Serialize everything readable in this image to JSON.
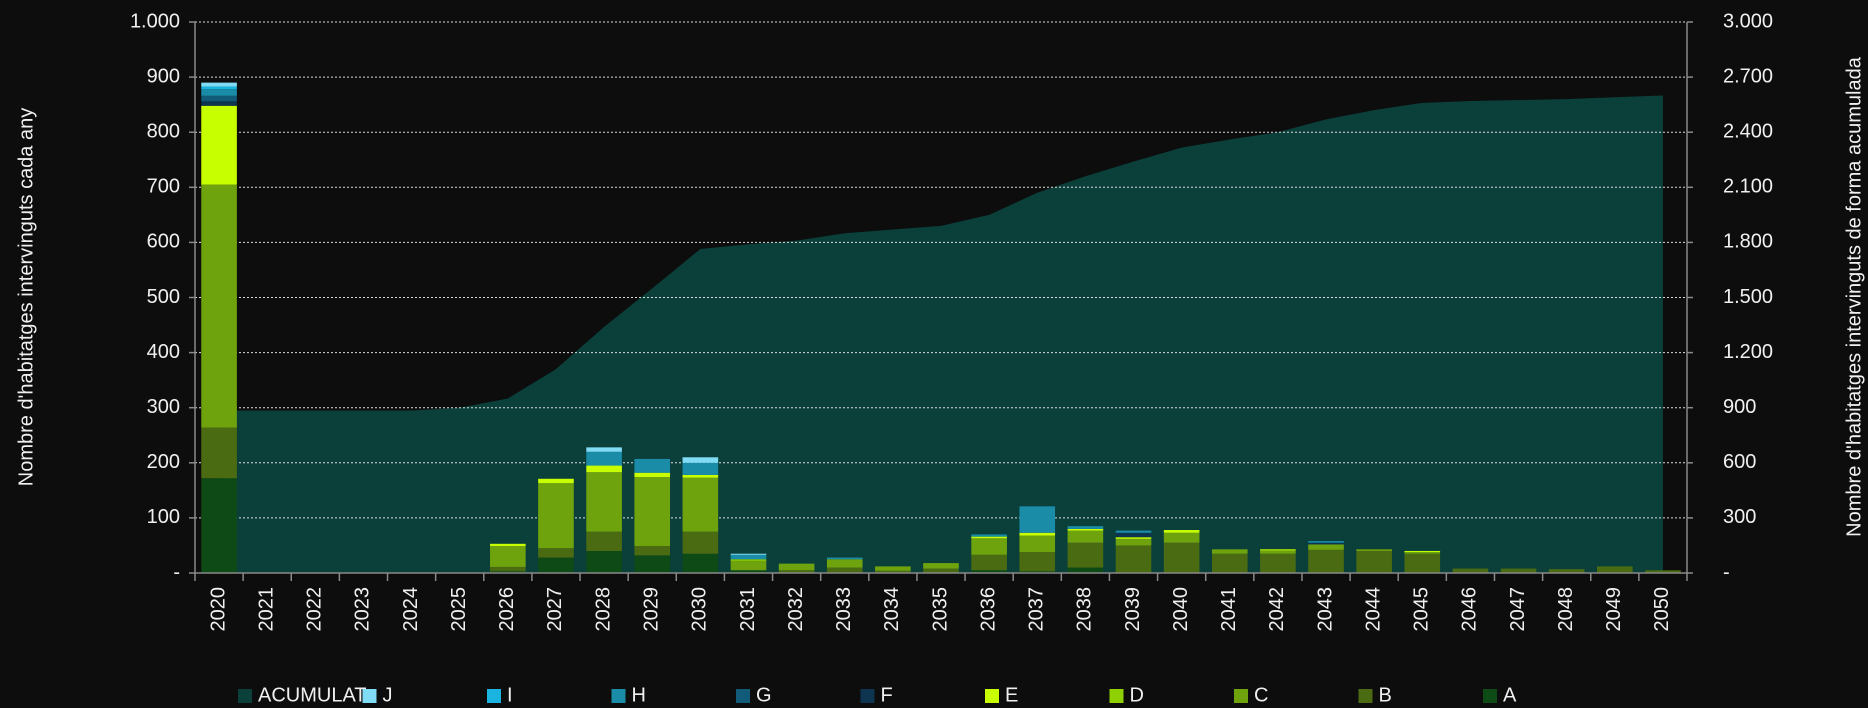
{
  "chart_data": {
    "type": "bar",
    "ylabel": "Nombre d'habitatges intervinguts cada any",
    "y2label": "Nombre d'habitatges intervinguts de forma acumulada",
    "categories": [
      "2020",
      "2021",
      "2022",
      "2023",
      "2024",
      "2025",
      "2026",
      "2027",
      "2028",
      "2029",
      "2030",
      "2031",
      "2032",
      "2033",
      "2034",
      "2035",
      "2036",
      "2037",
      "2038",
      "2039",
      "2040",
      "2041",
      "2042",
      "2043",
      "2044",
      "2045",
      "2046",
      "2047",
      "2048",
      "2049",
      "2050"
    ],
    "ylim": [
      0,
      1000
    ],
    "yticks": [
      {
        "value": 0,
        "label": "-"
      },
      100,
      200,
      300,
      400,
      500,
      600,
      700,
      800,
      900,
      {
        "value": 1000,
        "label": "1.000"
      }
    ],
    "y2lim": [
      0,
      3000
    ],
    "y2ticks": [
      {
        "value": 0,
        "label": "-"
      },
      300,
      600,
      900,
      {
        "value": 1200,
        "label": "1.200"
      },
      {
        "value": 1500,
        "label": "1.500"
      },
      {
        "value": 1800,
        "label": "1.800"
      },
      {
        "value": 2100,
        "label": "2.100"
      },
      {
        "value": 2400,
        "label": "2.400"
      },
      {
        "value": 2700,
        "label": "2.700"
      },
      {
        "value": 3000,
        "label": "3.000"
      }
    ],
    "grid": true,
    "stacked": true,
    "legend": "bottom",
    "series": [
      {
        "name": "A",
        "color": "#0e4a16",
        "values": [
          172,
          0,
          0,
          0,
          0,
          0,
          3,
          28,
          40,
          32,
          35,
          5,
          0,
          0,
          0,
          0,
          5,
          3,
          10,
          0,
          0,
          0,
          0,
          0,
          0,
          0,
          0,
          0,
          0,
          0,
          0
        ]
      },
      {
        "name": "B",
        "color": "#4b6b12",
        "values": [
          92,
          0,
          0,
          0,
          0,
          0,
          8,
          17,
          35,
          17,
          40,
          0,
          5,
          10,
          4,
          8,
          28,
          35,
          45,
          50,
          55,
          35,
          35,
          42,
          40,
          35,
          8,
          8,
          7,
          12,
          5
        ]
      },
      {
        "name": "C",
        "color": "#6fa30e",
        "values": [
          441,
          0,
          0,
          0,
          0,
          0,
          38,
          118,
          108,
          125,
          98,
          17,
          12,
          15,
          8,
          10,
          30,
          30,
          22,
          12,
          18,
          8,
          6,
          10,
          3,
          3,
          0,
          0,
          0,
          0,
          0
        ]
      },
      {
        "name": "D",
        "color": "#8fd000",
        "values": [
          0,
          0,
          0,
          0,
          0,
          0,
          0,
          0,
          0,
          0,
          0,
          3,
          0,
          0,
          0,
          0,
          0,
          0,
          0,
          0,
          0,
          0,
          0,
          0,
          0,
          0,
          0,
          0,
          0,
          0,
          0
        ]
      },
      {
        "name": "E",
        "color": "#c8ff00",
        "values": [
          143,
          0,
          0,
          0,
          0,
          0,
          4,
          8,
          12,
          8,
          5,
          0,
          0,
          0,
          0,
          0,
          3,
          5,
          3,
          3,
          5,
          0,
          2,
          0,
          0,
          2,
          0,
          0,
          0,
          0,
          0
        ]
      },
      {
        "name": "F",
        "color": "#0d3550",
        "values": [
          8,
          0,
          0,
          0,
          0,
          0,
          0,
          0,
          0,
          0,
          0,
          0,
          0,
          0,
          0,
          0,
          0,
          0,
          0,
          8,
          0,
          0,
          0,
          3,
          0,
          0,
          0,
          0,
          0,
          0,
          0
        ]
      },
      {
        "name": "G",
        "color": "#115a78",
        "values": [
          10,
          0,
          0,
          0,
          0,
          0,
          0,
          0,
          0,
          0,
          0,
          0,
          0,
          0,
          0,
          0,
          0,
          0,
          0,
          0,
          0,
          0,
          0,
          0,
          0,
          0,
          0,
          0,
          0,
          0,
          0
        ]
      },
      {
        "name": "H",
        "color": "#1a8ca8",
        "values": [
          12,
          0,
          0,
          0,
          0,
          0,
          0,
          0,
          25,
          25,
          22,
          8,
          0,
          3,
          0,
          0,
          4,
          48,
          5,
          4,
          0,
          0,
          0,
          3,
          0,
          0,
          0,
          0,
          0,
          0,
          0
        ]
      },
      {
        "name": "I",
        "color": "#1bb3e0",
        "values": [
          5,
          0,
          0,
          0,
          0,
          0,
          0,
          0,
          0,
          0,
          0,
          0,
          0,
          0,
          0,
          0,
          0,
          0,
          0,
          0,
          0,
          0,
          0,
          0,
          0,
          0,
          0,
          0,
          0,
          0,
          0
        ]
      },
      {
        "name": "J",
        "color": "#80dcf5",
        "values": [
          7,
          0,
          0,
          0,
          0,
          0,
          0,
          0,
          8,
          0,
          10,
          2,
          0,
          0,
          0,
          0,
          0,
          0,
          0,
          0,
          0,
          0,
          0,
          0,
          0,
          0,
          0,
          0,
          0,
          0,
          0
        ]
      },
      {
        "name": "ACUMULAT",
        "type": "area",
        "axis": "y2",
        "color": "#0a3f3a",
        "values": [
          885,
          885,
          885,
          885,
          885,
          900,
          950,
          1110,
          1340,
          1550,
          1764,
          1790,
          1810,
          1850,
          1870,
          1890,
          1950,
          2070,
          2160,
          2240,
          2316,
          2360,
          2400,
          2470,
          2520,
          2560,
          2570,
          2575,
          2580,
          2590,
          2600
        ]
      }
    ]
  }
}
